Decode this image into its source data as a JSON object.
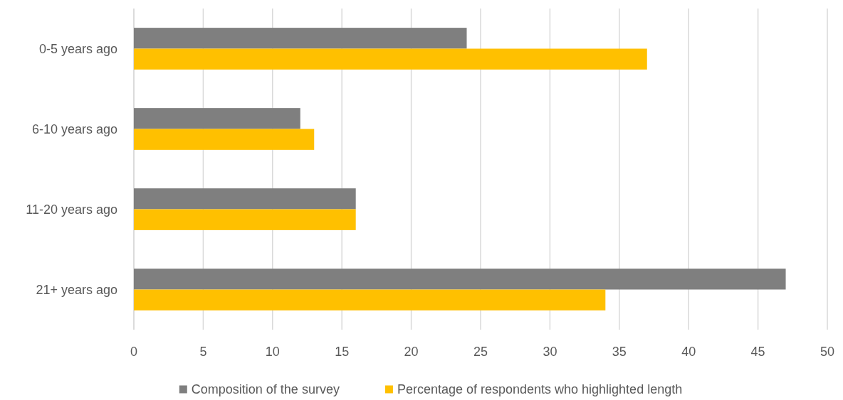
{
  "chart_data": {
    "type": "bar",
    "orientation": "horizontal",
    "categories": [
      "0-5 years ago",
      "6-10 years ago",
      "11-20 years ago",
      "21+ years ago"
    ],
    "series": [
      {
        "name": "Composition of the survey",
        "color": "#7f7f7f",
        "values": [
          24,
          12,
          16,
          47
        ]
      },
      {
        "name": "Percentage of respondents who highlighted length",
        "color": "#ffc000",
        "values": [
          37,
          13,
          16,
          34
        ]
      }
    ],
    "xlim": [
      0,
      50
    ],
    "xticks": [
      0,
      5,
      10,
      15,
      20,
      25,
      30,
      35,
      40,
      45,
      50
    ],
    "grid": "x",
    "legend": "bottom"
  }
}
